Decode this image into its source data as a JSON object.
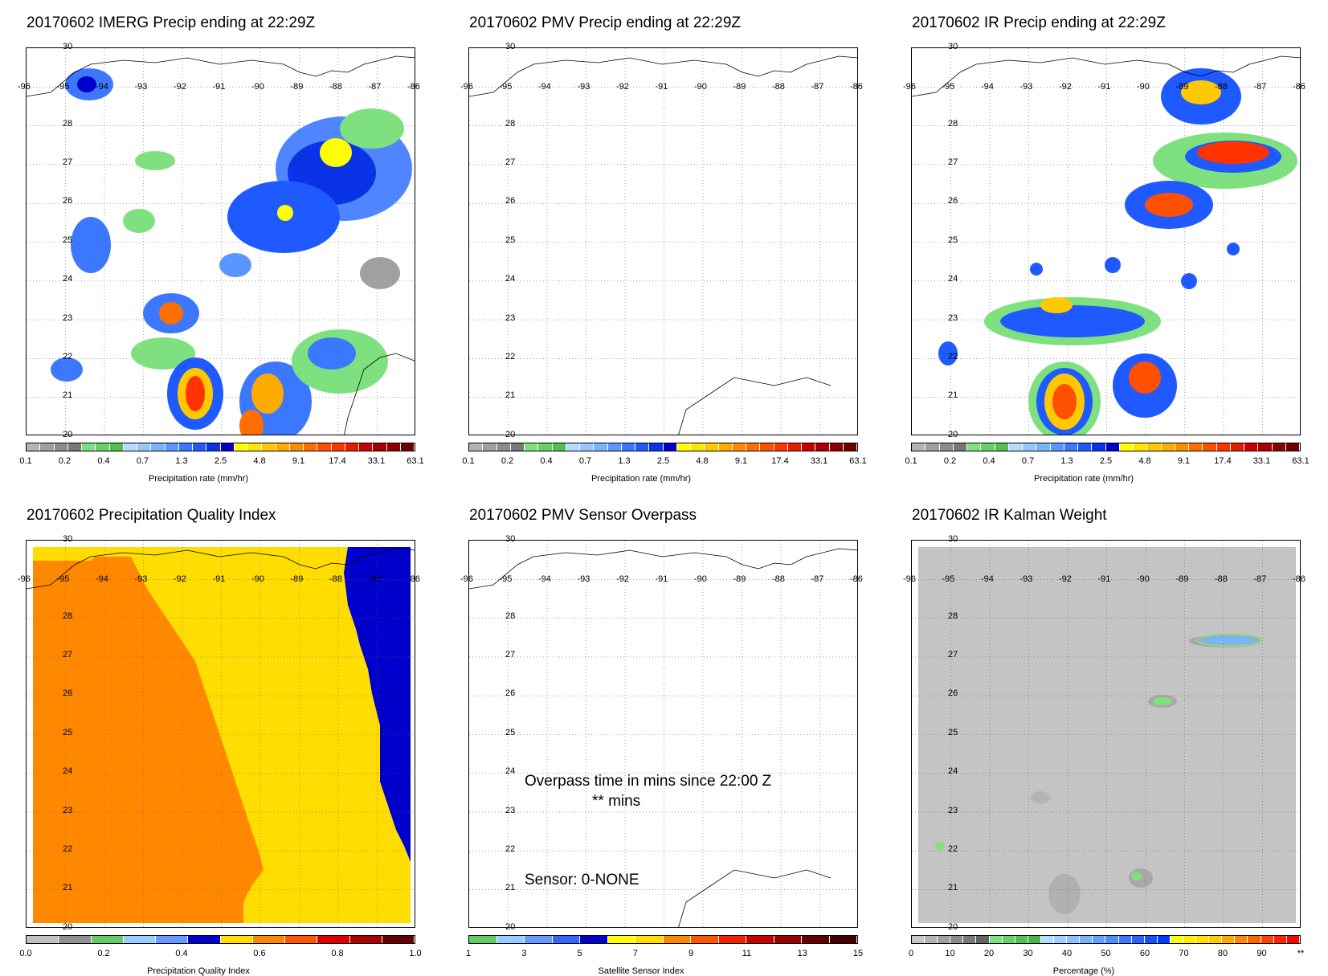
{
  "panels": [
    {
      "id": "imerg",
      "title": "20170602 IMERG Precip ending at 22:29Z",
      "colorbar": "precip",
      "cb_title": "Precipitation rate (mm/hr)"
    },
    {
      "id": "pmv",
      "title": "20170602 PMV Precip ending at 22:29Z",
      "colorbar": "precip",
      "cb_title": "Precipitation rate (mm/hr)"
    },
    {
      "id": "ir",
      "title": "20170602 IR Precip ending at 22:29Z",
      "colorbar": "precip",
      "cb_title": "Precipitation rate (mm/hr)"
    },
    {
      "id": "pqi",
      "title": "20170602 Precipitation Quality Index",
      "colorbar": "pqi",
      "cb_title": "Precipitation Quality Index"
    },
    {
      "id": "overpass",
      "title": "20170602 PMV Sensor Overpass",
      "colorbar": "sensor",
      "cb_title": "Satellite Sensor Index"
    },
    {
      "id": "kalman",
      "title": "20170602 IR Kalman Weight",
      "colorbar": "percent",
      "cb_title": "Percentage (%)"
    }
  ],
  "lat_labels": [
    "30",
    "28",
    "27",
    "26",
    "25",
    "24",
    "23",
    "22",
    "21",
    "20"
  ],
  "lon_labels": [
    "-96",
    "-95",
    "-94",
    "-93",
    "-92",
    "-91",
    "-90",
    "-89",
    "-88",
    "-87",
    "-86"
  ],
  "colorbars": {
    "precip": {
      "ticks": [
        "0.1",
        "0.2",
        "0.4",
        "0.7",
        "1.3",
        "2.5",
        "4.8",
        "9.1",
        "17.4",
        "33.1",
        "63.1"
      ],
      "colors": [
        "#b4b4b4",
        "#a0a0a0",
        "#8c8c8c",
        "#787878",
        "#7fe07f",
        "#64d264",
        "#50c050",
        "#b4dcff",
        "#96c8ff",
        "#78b4ff",
        "#5a96ff",
        "#3c78ff",
        "#1e5aff",
        "#0a32e6",
        "#0000c8",
        "#ffff00",
        "#ffe600",
        "#ffc800",
        "#ffaa00",
        "#ff8c00",
        "#ff6e00",
        "#ff5000",
        "#ff3200",
        "#e61e00",
        "#c80000",
        "#aa0000",
        "#8c0000",
        "#700000"
      ]
    },
    "pqi": {
      "ticks": [
        "0.0",
        "0.2",
        "0.4",
        "0.6",
        "0.8",
        "1.0"
      ],
      "colors": [
        "#c0c0c0",
        "#909090",
        "#66cc66",
        "#99ccff",
        "#6699ff",
        "#0000cc",
        "#ffdd00",
        "#ff8800",
        "#ff5500",
        "#dd0000",
        "#aa0000",
        "#660000"
      ]
    },
    "sensor": {
      "ticks": [
        "1",
        "3",
        "5",
        "7",
        "9",
        "11",
        "13",
        "15"
      ],
      "colors": [
        "#66cc66",
        "#99ccff",
        "#6699ff",
        "#3366ff",
        "#0000cc",
        "#ffff00",
        "#ffdd00",
        "#ff8800",
        "#ff5500",
        "#ee2200",
        "#cc0000",
        "#990000",
        "#660000",
        "#440000"
      ]
    },
    "percent": {
      "ticks": [
        "0",
        "10",
        "20",
        "30",
        "40",
        "50",
        "60",
        "70",
        "80",
        "90",
        "**"
      ],
      "colors": [
        "#c8c8c8",
        "#b4b4b4",
        "#a0a0a0",
        "#8c8c8c",
        "#787878",
        "#646464",
        "#7fe07f",
        "#64d264",
        "#50c050",
        "#46b446",
        "#b4dcff",
        "#a0d0ff",
        "#8cc0ff",
        "#78b4ff",
        "#64a0ff",
        "#508cff",
        "#3c78ff",
        "#2864ff",
        "#1450ff",
        "#003cff",
        "#ffff00",
        "#ffee00",
        "#ffdd00",
        "#ffcc00",
        "#ffaa00",
        "#ff8800",
        "#ff6600",
        "#ff4400",
        "#ff2200",
        "#ff0000"
      ]
    }
  },
  "overpass": {
    "line1": "Overpass time in mins since 22:00 Z",
    "line2": "** mins",
    "sensor_line": "Sensor:   0-NONE"
  }
}
